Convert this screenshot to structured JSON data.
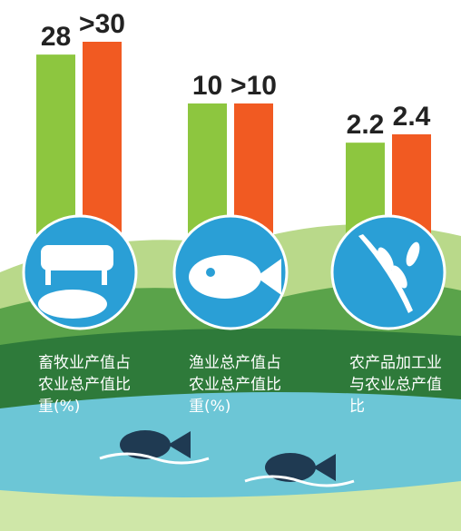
{
  "chart_data": {
    "type": "bar",
    "categories": [
      "畜牧业产值占农业总产值比重(%)",
      "渔业总产值占农业总产值比重(%)",
      "农产品加工业与农业总产值比"
    ],
    "series": [
      {
        "color": "#8dc63f",
        "values": [
          28,
          10,
          2.2
        ],
        "value_labels": [
          "28",
          "10",
          "2.2"
        ]
      },
      {
        "color": "#f15a22",
        "values": [
          30,
          10,
          2.4
        ],
        "value_labels": [
          ">30",
          ">10",
          "2.4"
        ]
      }
    ]
  }
}
